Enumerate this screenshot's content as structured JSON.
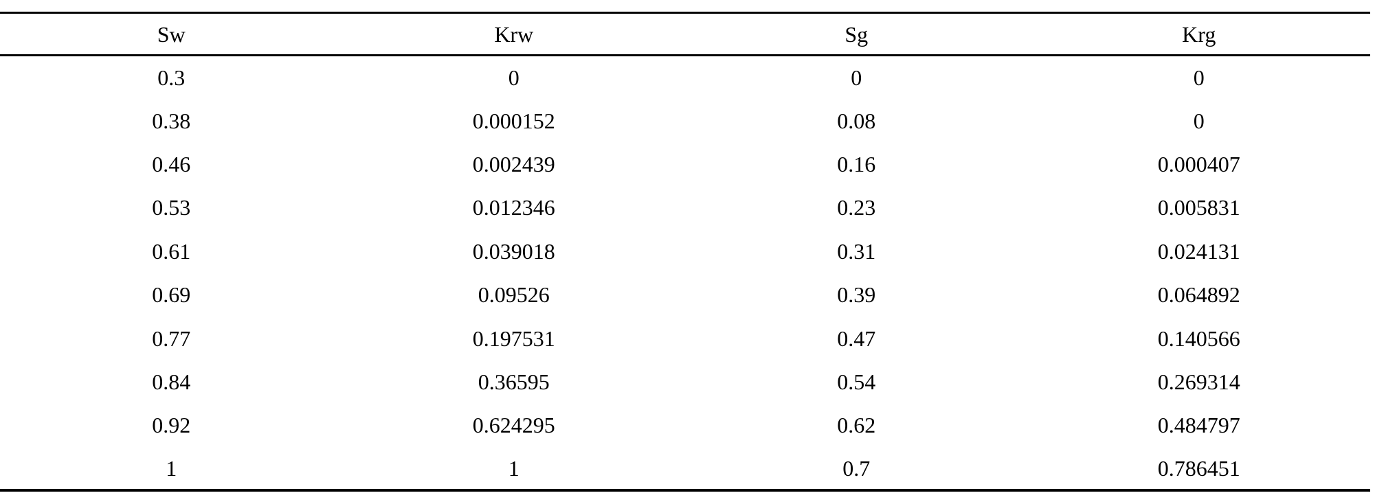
{
  "table": {
    "columns": [
      "Sw",
      "Krw",
      "Sg",
      "Krg"
    ],
    "rows": [
      [
        "0.3",
        "0",
        "0",
        "0"
      ],
      [
        "0.38",
        "0.000152",
        "0.08",
        "0"
      ],
      [
        "0.46",
        "0.002439",
        "0.16",
        "0.000407"
      ],
      [
        "0.53",
        "0.012346",
        "0.23",
        "0.005831"
      ],
      [
        "0.61",
        "0.039018",
        "0.31",
        "0.024131"
      ],
      [
        "0.69",
        "0.09526",
        "0.39",
        "0.064892"
      ],
      [
        "0.77",
        "0.197531",
        "0.47",
        "0.140566"
      ],
      [
        "0.84",
        "0.36595",
        "0.54",
        "0.269314"
      ],
      [
        "0.92",
        "0.624295",
        "0.62",
        "0.484797"
      ],
      [
        "1",
        "1",
        "0.7",
        "0.786451"
      ]
    ],
    "colors": {
      "rule": "#000000",
      "text": "#000000",
      "background": "#ffffff"
    }
  }
}
